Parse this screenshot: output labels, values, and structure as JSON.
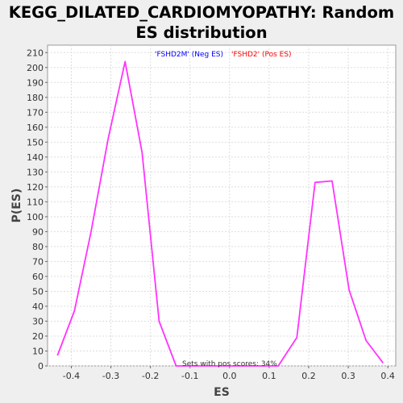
{
  "chart_data": {
    "type": "line",
    "title_line1": "KEGG_DILATED_CARDIOMYOPATHY: Random",
    "title_line2": "ES distribution",
    "xlabel": "ES",
    "ylabel": "P(ES)",
    "xlim": [
      -0.46,
      0.42
    ],
    "ylim": [
      0,
      215
    ],
    "xticks": [
      -0.4,
      -0.3,
      -0.2,
      -0.1,
      0.0,
      0.1,
      0.2,
      0.3,
      0.4
    ],
    "xtick_labels": [
      "-0.4",
      "-0.3",
      "-0.2",
      "-0.1",
      "0.0",
      "0.1",
      "0.2",
      "0.3",
      "0.4"
    ],
    "yticks": [
      0,
      10,
      20,
      30,
      40,
      50,
      60,
      70,
      80,
      90,
      100,
      110,
      120,
      130,
      140,
      150,
      160,
      170,
      180,
      190,
      200,
      210
    ],
    "grid": true,
    "legend": [
      {
        "label": "'FSHD2M' (Neg ES)",
        "color": "#0000ff"
      },
      {
        "label": "'FSHD2' (Pos ES)",
        "color": "#ff0000"
      }
    ],
    "annotation": "Sets with pos scores: 34%",
    "series": [
      {
        "color": "#ff33ff",
        "x": [
          -0.435,
          -0.392,
          -0.35,
          -0.307,
          -0.264,
          -0.221,
          -0.178,
          -0.135,
          -0.092,
          -0.049,
          -0.006,
          0.037,
          0.08,
          0.123,
          0.17,
          0.216,
          0.259,
          0.302,
          0.345,
          0.388
        ],
        "y": [
          7,
          37,
          90,
          152,
          204,
          143,
          30,
          0,
          0,
          0,
          0,
          0,
          0,
          0,
          19,
          123,
          124,
          51,
          17,
          2
        ]
      }
    ]
  }
}
